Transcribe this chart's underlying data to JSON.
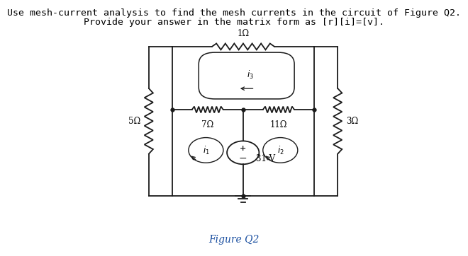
{
  "title_line1": "Use mesh-current analysis to find the mesh currents in the circuit of Figure Q2.",
  "title_line2": "Provide your answer in the matrix form as [r][i]=[v].",
  "figure_label": "Figure Q2",
  "background_color": "#ffffff",
  "line_color": "#1a1a1a",
  "font_size_title": 9.5,
  "font_size_labels": 8.5,
  "font_size_fig_label": 10,
  "circuit": {
    "xl": 0.315,
    "xr": 0.74,
    "xm": 0.527,
    "yt": 0.835,
    "ym": 0.575,
    "yb": 0.22,
    "xll": 0.245,
    "xrr": 0.81
  }
}
